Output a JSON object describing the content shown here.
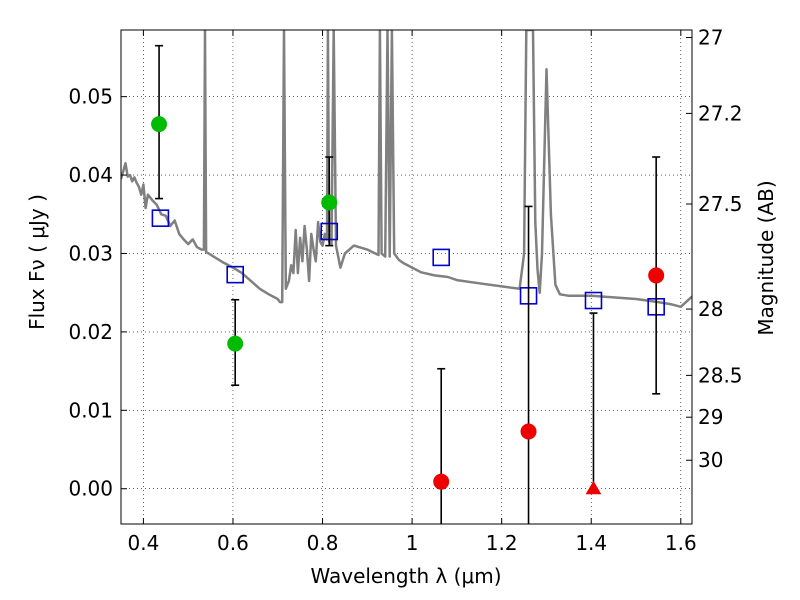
{
  "chart_data": {
    "type": "scatter",
    "xlabel": "Wavelength  λ (μm)",
    "ylabel": "Flux  Fν  ( μJy )",
    "ylabel_right": "Magnitude (AB)",
    "xlim": [
      0.35,
      1.625
    ],
    "ylim": [
      -0.0045,
      0.0585
    ],
    "grid": true,
    "x_ticks": [
      {
        "value": 0.4,
        "label": "0.4"
      },
      {
        "value": 0.6,
        "label": "0.6"
      },
      {
        "value": 0.8,
        "label": "0.8"
      },
      {
        "value": 1.0,
        "label": "1"
      },
      {
        "value": 1.2,
        "label": "1.2"
      },
      {
        "value": 1.4,
        "label": "1.4"
      },
      {
        "value": 1.6,
        "label": "1.6"
      }
    ],
    "y_ticks": [
      {
        "value": 0.0,
        "label": "0.00"
      },
      {
        "value": 0.01,
        "label": "0.01"
      },
      {
        "value": 0.02,
        "label": "0.02"
      },
      {
        "value": 0.03,
        "label": "0.03"
      },
      {
        "value": 0.04,
        "label": "0.04"
      },
      {
        "value": 0.05,
        "label": "0.05"
      }
    ],
    "mag_ticks": [
      {
        "mag": 27,
        "label": "27"
      },
      {
        "mag": 27.2,
        "label": "27.2"
      },
      {
        "mag": 27.5,
        "label": "27.5"
      },
      {
        "mag": 28,
        "label": "28"
      },
      {
        "mag": 28.5,
        "label": "28.5"
      },
      {
        "mag": 29,
        "label": "29"
      },
      {
        "mag": 30,
        "label": "30"
      }
    ],
    "colors": {
      "template": "#808080",
      "green": "#00bb00",
      "red": "#ee0000",
      "model_box": "#0000cc",
      "errorbar": "#000000"
    },
    "template_spectrum": [
      [
        0.35,
        0.0395
      ],
      [
        0.36,
        0.0415
      ],
      [
        0.365,
        0.0398
      ],
      [
        0.37,
        0.04
      ],
      [
        0.375,
        0.0392
      ],
      [
        0.38,
        0.0397
      ],
      [
        0.385,
        0.039
      ],
      [
        0.39,
        0.0385
      ],
      [
        0.395,
        0.0375
      ],
      [
        0.4,
        0.0388
      ],
      [
        0.405,
        0.0358
      ],
      [
        0.41,
        0.0375
      ],
      [
        0.42,
        0.0368
      ],
      [
        0.43,
        0.0362
      ],
      [
        0.44,
        0.035
      ],
      [
        0.45,
        0.0348
      ],
      [
        0.46,
        0.0335
      ],
      [
        0.47,
        0.0342
      ],
      [
        0.48,
        0.0325
      ],
      [
        0.49,
        0.0318
      ],
      [
        0.5,
        0.0312
      ],
      [
        0.51,
        0.0318
      ],
      [
        0.52,
        0.0308
      ],
      [
        0.53,
        0.0305
      ],
      [
        0.535,
        0.0305
      ],
      [
        0.5375,
        0.0585
      ],
      [
        0.54,
        0.0302
      ],
      [
        0.56,
        0.0295
      ],
      [
        0.58,
        0.0288
      ],
      [
        0.6,
        0.0282
      ],
      [
        0.62,
        0.0275
      ],
      [
        0.64,
        0.0265
      ],
      [
        0.66,
        0.0255
      ],
      [
        0.68,
        0.0248
      ],
      [
        0.7,
        0.0242
      ],
      [
        0.705,
        0.0238
      ],
      [
        0.71,
        0.0238
      ],
      [
        0.714,
        0.0585
      ],
      [
        0.718,
        0.0255
      ],
      [
        0.725,
        0.0265
      ],
      [
        0.73,
        0.0285
      ],
      [
        0.735,
        0.0275
      ],
      [
        0.74,
        0.033
      ],
      [
        0.745,
        0.0275
      ],
      [
        0.75,
        0.032
      ],
      [
        0.755,
        0.029
      ],
      [
        0.76,
        0.0335
      ],
      [
        0.765,
        0.0305
      ],
      [
        0.77,
        0.0265
      ],
      [
        0.775,
        0.0325
      ],
      [
        0.78,
        0.0305
      ],
      [
        0.785,
        0.029
      ],
      [
        0.79,
        0.034
      ],
      [
        0.795,
        0.0315
      ],
      [
        0.8,
        0.031
      ],
      [
        0.805,
        0.0325
      ],
      [
        0.81,
        0.0318
      ],
      [
        0.812,
        0.0585
      ],
      [
        0.815,
        0.0315
      ],
      [
        0.82,
        0.0312
      ],
      [
        0.825,
        0.0585
      ],
      [
        0.83,
        0.031
      ],
      [
        0.84,
        0.0282
      ],
      [
        0.85,
        0.03
      ],
      [
        0.87,
        0.031
      ],
      [
        0.9,
        0.0305
      ],
      [
        0.925,
        0.0298
      ],
      [
        0.928,
        0.0585
      ],
      [
        0.932,
        0.03
      ],
      [
        0.94,
        0.0296
      ],
      [
        0.945,
        0.0585
      ],
      [
        0.95,
        0.0296
      ],
      [
        0.955,
        0.0585
      ],
      [
        0.96,
        0.03
      ],
      [
        0.97,
        0.0292
      ],
      [
        0.98,
        0.0288
      ],
      [
        1.0,
        0.0282
      ],
      [
        1.02,
        0.0276
      ],
      [
        1.05,
        0.0272
      ],
      [
        1.08,
        0.027
      ],
      [
        1.1,
        0.0266
      ],
      [
        1.15,
        0.0262
      ],
      [
        1.2,
        0.0258
      ],
      [
        1.24,
        0.0255
      ],
      [
        1.25,
        0.03
      ],
      [
        1.255,
        0.0585
      ],
      [
        1.26,
        0.0585
      ],
      [
        1.27,
        0.0585
      ],
      [
        1.275,
        0.034
      ],
      [
        1.28,
        0.028
      ],
      [
        1.285,
        0.025
      ],
      [
        1.29,
        0.03
      ],
      [
        1.3,
        0.0535
      ],
      [
        1.31,
        0.035
      ],
      [
        1.32,
        0.026
      ],
      [
        1.33,
        0.0248
      ],
      [
        1.35,
        0.0246
      ],
      [
        1.4,
        0.0246
      ],
      [
        1.45,
        0.0244
      ],
      [
        1.5,
        0.0242
      ],
      [
        1.55,
        0.0238
      ],
      [
        1.58,
        0.0235
      ],
      [
        1.6,
        0.0232
      ],
      [
        1.625,
        0.0245
      ]
    ],
    "model_points": [
      {
        "x": 0.438,
        "y": 0.0345
      },
      {
        "x": 0.605,
        "y": 0.0273
      },
      {
        "x": 0.815,
        "y": 0.0328
      },
      {
        "x": 1.065,
        "y": 0.0295
      },
      {
        "x": 1.26,
        "y": 0.0246
      },
      {
        "x": 1.405,
        "y": 0.024
      },
      {
        "x": 1.545,
        "y": 0.0232
      }
    ],
    "observed_points": [
      {
        "x": 0.435,
        "y": 0.0465,
        "yerr_low": 0.037,
        "yerr_high": 0.0565,
        "marker": "circle",
        "color": "green"
      },
      {
        "x": 0.605,
        "y": 0.0185,
        "yerr_low": 0.0132,
        "yerr_high": 0.0241,
        "marker": "circle",
        "color": "green"
      },
      {
        "x": 0.815,
        "y": 0.0365,
        "yerr_low": 0.031,
        "yerr_high": 0.0423,
        "marker": "circle",
        "color": "green"
      },
      {
        "x": 1.065,
        "y": 0.0009,
        "yerr_low": -0.0045,
        "yerr_high": 0.0153,
        "marker": "circle",
        "color": "red"
      },
      {
        "x": 1.26,
        "y": 0.0073,
        "yerr_low": -0.0045,
        "yerr_high": 0.036,
        "marker": "circle",
        "color": "red"
      },
      {
        "x": 1.405,
        "y": 0.0,
        "yerr_low": 0.0,
        "yerr_high": 0.0224,
        "marker": "triangle",
        "color": "red"
      },
      {
        "x": 1.545,
        "y": 0.0272,
        "yerr_low": 0.0121,
        "yerr_high": 0.0423,
        "marker": "circle",
        "color": "red"
      }
    ]
  }
}
